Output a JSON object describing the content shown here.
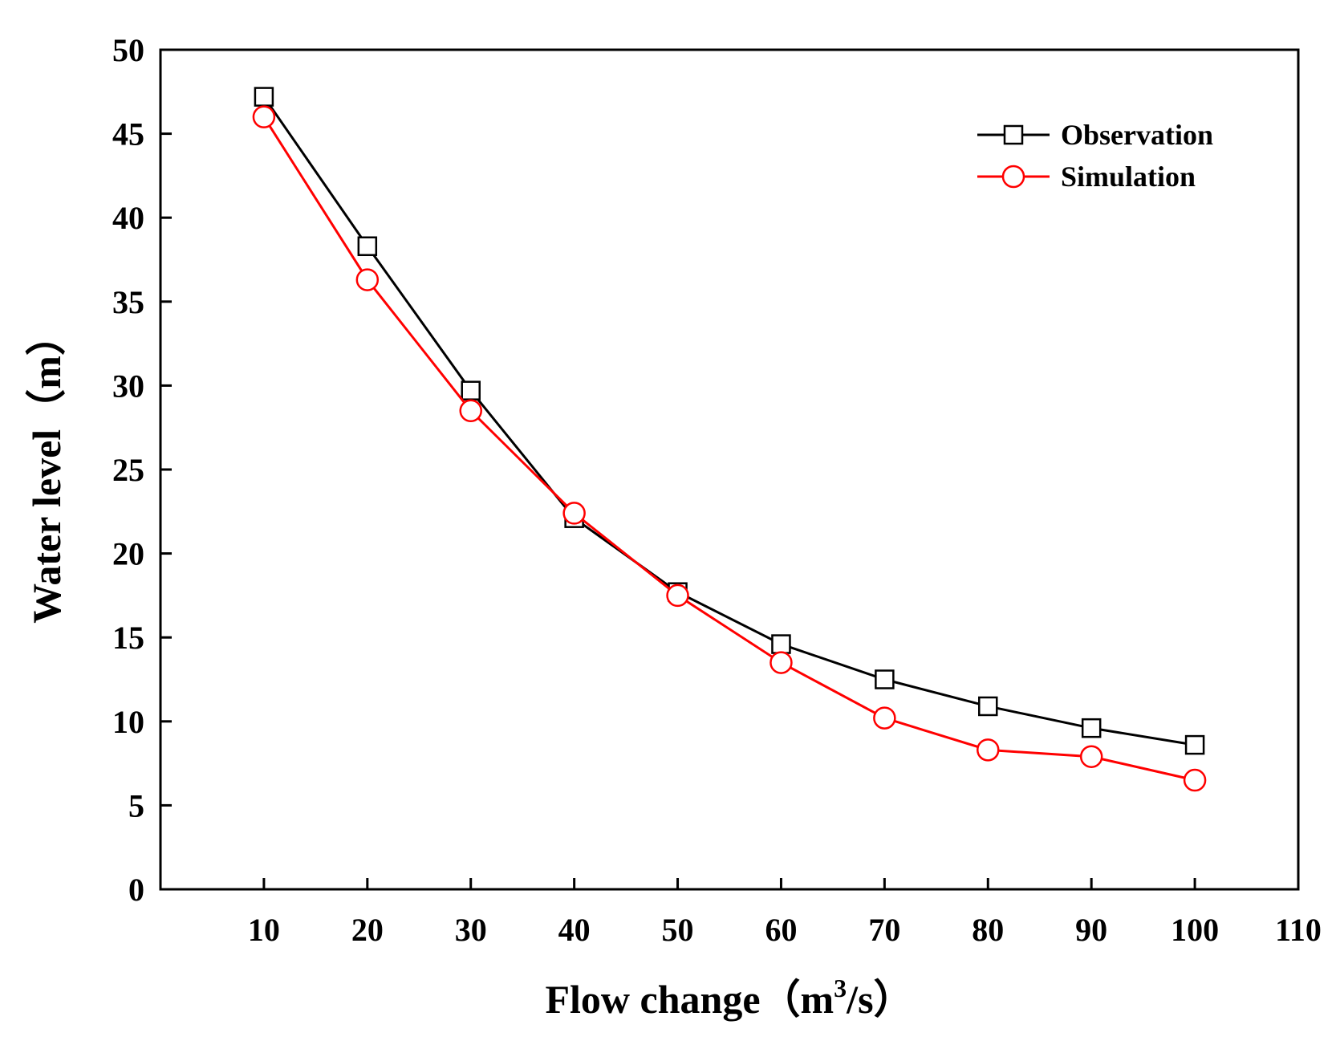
{
  "chart_data": {
    "type": "line",
    "title": "",
    "xlabel": "Flow change（m",
    "xlabel_sup": "3",
    "xlabel_tail": "/s）",
    "ylabel": "Water level（m）",
    "xlim": [
      0,
      110
    ],
    "ylim": [
      0,
      50
    ],
    "grid": false,
    "legend_position": "top-right",
    "xticks": [
      10,
      20,
      30,
      40,
      50,
      60,
      70,
      80,
      90,
      100,
      110
    ],
    "yticks": [
      0,
      5,
      10,
      15,
      20,
      25,
      30,
      35,
      40,
      45,
      50
    ],
    "x": [
      10,
      20,
      30,
      40,
      50,
      60,
      70,
      80,
      90,
      100
    ],
    "series": [
      {
        "name": "Observation",
        "marker": "square",
        "color": "#000000",
        "values": [
          47.2,
          38.3,
          29.7,
          22.1,
          17.7,
          14.6,
          12.5,
          10.9,
          9.6,
          8.6
        ]
      },
      {
        "name": "Simulation",
        "marker": "circle",
        "color": "#ff0000",
        "values": [
          46.0,
          36.3,
          28.5,
          22.4,
          17.5,
          13.5,
          10.2,
          8.3,
          7.9,
          6.5
        ]
      }
    ]
  }
}
